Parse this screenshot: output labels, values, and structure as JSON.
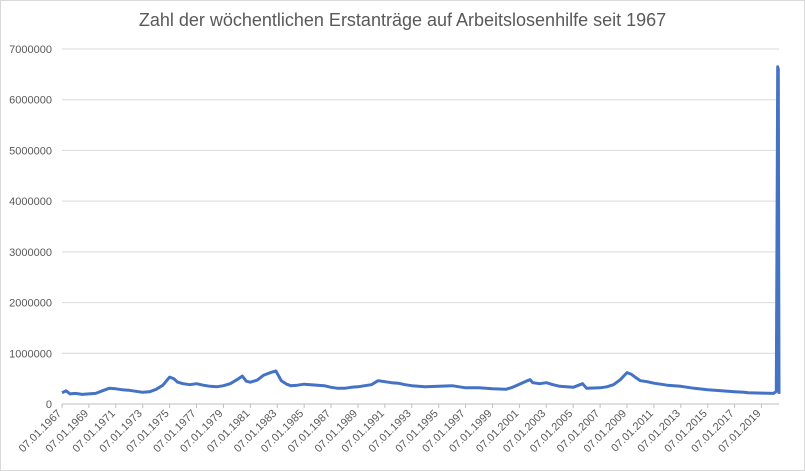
{
  "chart_data": {
    "type": "line",
    "title": "Zahl der wöchentlichen Erstanträge auf Arbeitslosenhilfe seit 1967",
    "xlabel": "",
    "ylabel": "",
    "ylim": [
      0,
      7000000
    ],
    "y_ticks": [
      0,
      1000000,
      2000000,
      3000000,
      4000000,
      5000000,
      6000000,
      7000000
    ],
    "y_tick_labels": [
      "0",
      "1000000",
      "2000000",
      "3000000",
      "4000000",
      "5000000",
      "6000000",
      "7000000"
    ],
    "x_range": [
      1967.0,
      2020.3
    ],
    "x_ticks": [
      1967,
      1969,
      1971,
      1973,
      1975,
      1977,
      1979,
      1981,
      1983,
      1985,
      1987,
      1989,
      1991,
      1993,
      1995,
      1997,
      1999,
      2001,
      2003,
      2005,
      2007,
      2009,
      2011,
      2013,
      2015,
      2017,
      2019
    ],
    "x_tick_labels": [
      "07.01.1967",
      "07.01.1969",
      "07.01.1971",
      "07.01.1973",
      "07.01.1975",
      "07.01.1977",
      "07.01.1979",
      "07.01.1981",
      "07.01.1983",
      "07.01.1985",
      "07.01.1987",
      "07.01.1989",
      "07.01.1991",
      "07.01.1993",
      "07.01.1995",
      "07.01.1997",
      "07.01.1999",
      "07.01.2001",
      "07.01.2003",
      "07.01.2005",
      "07.01.2007",
      "07.01.2009",
      "07.01.2011",
      "07.01.2013",
      "07.01.2015",
      "07.01.2017",
      "07.01.2019"
    ],
    "grid": true,
    "series": [
      {
        "name": "Erstanträge",
        "color": "#4472c4",
        "x": [
          1967.0,
          1967.3,
          1967.6,
          1968.0,
          1968.5,
          1969.0,
          1969.5,
          1970.0,
          1970.5,
          1971.0,
          1971.5,
          1972.0,
          1972.5,
          1973.0,
          1973.5,
          1974.0,
          1974.5,
          1975.0,
          1975.3,
          1975.6,
          1976.0,
          1976.5,
          1977.0,
          1977.5,
          1978.0,
          1978.5,
          1979.0,
          1979.5,
          1980.0,
          1980.4,
          1980.7,
          1981.0,
          1981.5,
          1982.0,
          1982.5,
          1982.9,
          1983.3,
          1983.7,
          1984.0,
          1984.5,
          1985.0,
          1985.5,
          1986.0,
          1986.5,
          1987.0,
          1987.5,
          1988.0,
          1988.5,
          1989.0,
          1989.5,
          1990.0,
          1990.5,
          1991.0,
          1991.5,
          1992.0,
          1992.5,
          1993.0,
          1993.5,
          1994.0,
          1995.0,
          1996.0,
          1997.0,
          1998.0,
          1999.0,
          2000.0,
          2000.5,
          2001.0,
          2001.5,
          2001.8,
          2002.0,
          2002.5,
          2003.0,
          2003.5,
          2004.0,
          2005.0,
          2005.7,
          2006.0,
          2007.0,
          2007.5,
          2008.0,
          2008.5,
          2009.0,
          2009.3,
          2009.6,
          2010.0,
          2010.5,
          2011.0,
          2012.0,
          2013.0,
          2014.0,
          2015.0,
          2016.0,
          2017.0,
          2017.7,
          2018.0,
          2019.0,
          2019.9,
          2020.1,
          2020.15,
          2020.2,
          2020.25,
          2020.3
        ],
        "values": [
          220000,
          260000,
          200000,
          210000,
          190000,
          200000,
          210000,
          260000,
          310000,
          300000,
          280000,
          270000,
          250000,
          230000,
          240000,
          290000,
          370000,
          530000,
          500000,
          430000,
          400000,
          380000,
          400000,
          370000,
          350000,
          340000,
          360000,
          400000,
          480000,
          550000,
          450000,
          430000,
          470000,
          570000,
          620000,
          650000,
          460000,
          390000,
          360000,
          370000,
          390000,
          380000,
          370000,
          360000,
          330000,
          310000,
          310000,
          330000,
          340000,
          360000,
          380000,
          460000,
          440000,
          420000,
          410000,
          380000,
          360000,
          350000,
          340000,
          350000,
          360000,
          320000,
          320000,
          300000,
          290000,
          330000,
          390000,
          450000,
          480000,
          420000,
          400000,
          420000,
          380000,
          350000,
          330000,
          400000,
          310000,
          320000,
          340000,
          380000,
          480000,
          620000,
          590000,
          530000,
          460000,
          440000,
          410000,
          370000,
          350000,
          310000,
          280000,
          260000,
          240000,
          230000,
          220000,
          215000,
          210000,
          250000,
          3300000,
          6650000,
          6600000,
          200000
        ]
      }
    ]
  }
}
